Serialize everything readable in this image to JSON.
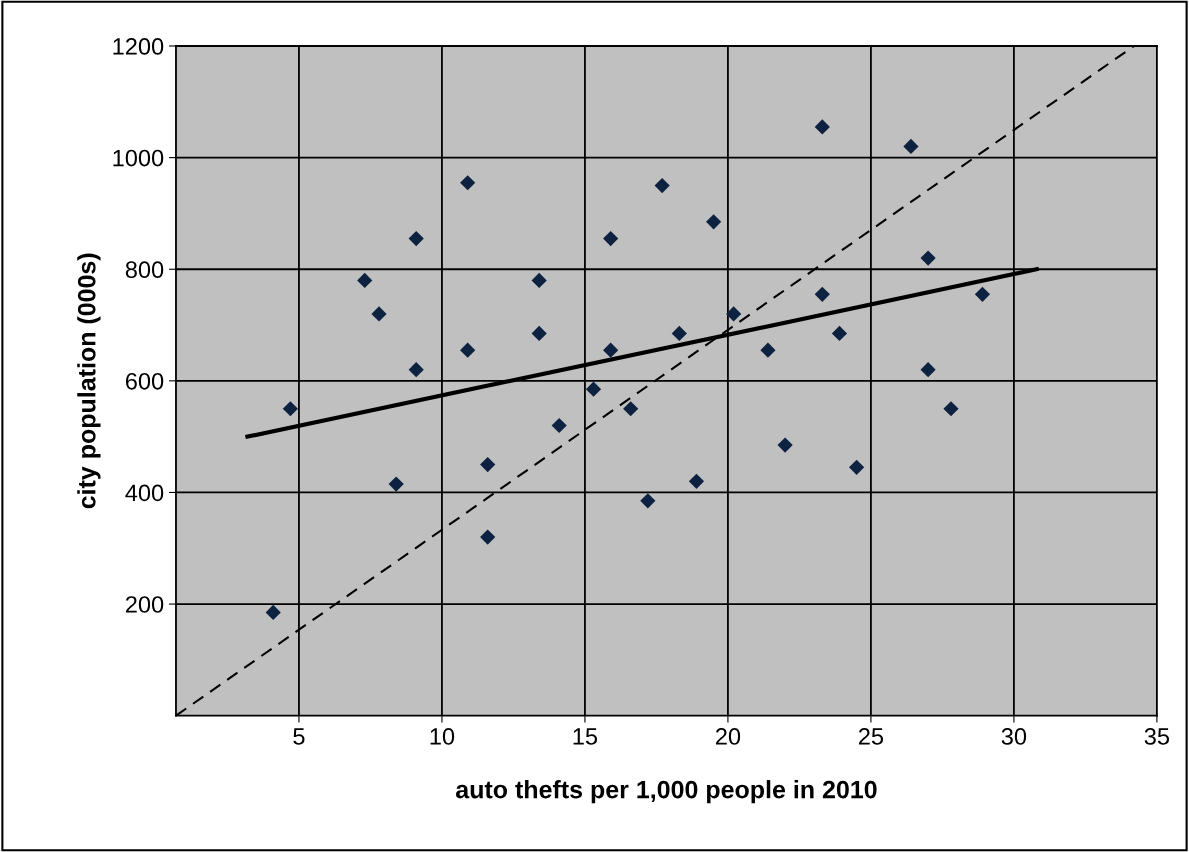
{
  "chart_data": {
    "type": "scatter",
    "xlabel": "auto thefts per 1,000 people in 2010",
    "ylabel": "city population (000s)",
    "xlim": [
      0.7,
      35
    ],
    "ylim": [
      0,
      1200
    ],
    "xticks": [
      5,
      10,
      15,
      20,
      25,
      30,
      35
    ],
    "yticks": [
      200,
      400,
      600,
      800,
      1000,
      1200
    ],
    "grid": true,
    "legend": false,
    "marker": "diamond",
    "series": [
      {
        "color": "#0d2240",
        "x": [
          10.9,
          9.1,
          15.9,
          7.3,
          13.4,
          7.8,
          13.4,
          10.9,
          15.9,
          9.1,
          4.7,
          15.3,
          16.6,
          14.1,
          11.6,
          8.4,
          11.6,
          17.2,
          4.1,
          23.3,
          26.4,
          17.7,
          19.5,
          27.0,
          20.2,
          23.3,
          28.9,
          18.3,
          23.9,
          21.4,
          27.0,
          27.8,
          22.0,
          24.5,
          18.9
        ],
        "values": [
          955,
          855,
          855,
          780,
          780,
          720,
          685,
          655,
          655,
          620,
          550,
          585,
          550,
          520,
          450,
          415,
          320,
          385,
          185,
          1055,
          1020,
          950,
          885,
          820,
          720,
          755,
          755,
          685,
          685,
          655,
          620,
          550,
          485,
          445,
          420
        ]
      },
      {
        "type": "line",
        "color": "#000000",
        "line_style": "solid",
        "marker": "none",
        "x": [
          3.2,
          30.8
        ],
        "values": [
          500,
          800
        ]
      },
      {
        "type": "line",
        "color": "#000000",
        "line_style": "dashed",
        "marker": "none",
        "x": [
          0.7,
          34.2
        ],
        "values": [
          0,
          1200
        ]
      }
    ]
  }
}
